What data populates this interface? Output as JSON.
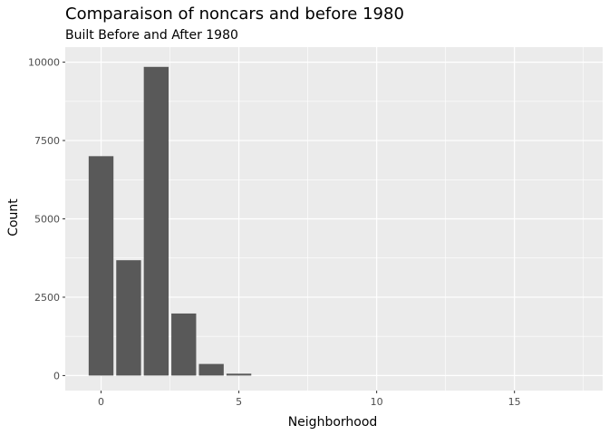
{
  "chart_data": {
    "type": "bar",
    "title": "Comparaison of noncars and before 1980",
    "subtitle": "Built Before and After 1980",
    "xlabel": "Neighborhood",
    "ylabel": "Count",
    "x": [
      0,
      1,
      2,
      3,
      4,
      5
    ],
    "values": [
      7000,
      3680,
      9850,
      1980,
      370,
      60
    ],
    "xlim": [
      -1.3,
      18.2
    ],
    "ylim": [
      -480,
      10480
    ],
    "x_ticks": [
      0,
      5,
      10,
      15
    ],
    "x_tick_labels": [
      "0",
      "5",
      "10",
      "15"
    ],
    "y_ticks": [
      0,
      2500,
      5000,
      7500,
      10000
    ],
    "y_tick_labels": [
      "0",
      "2500",
      "5000",
      "7500",
      "10000"
    ],
    "bar_color": "#595959",
    "panel_color": "#ebebeb",
    "grid_color": "#ffffff",
    "grid": true,
    "legend": "none"
  }
}
